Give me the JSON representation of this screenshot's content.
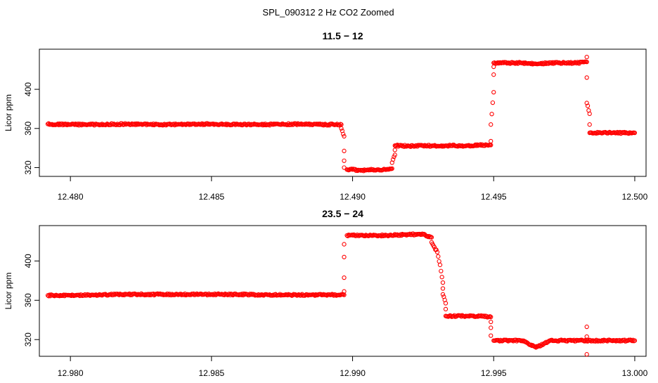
{
  "figure": {
    "title": "SPL_090312  2 Hz CO2 Zoomed"
  },
  "chart_data": [
    {
      "type": "scatter",
      "title": "11.5 − 12",
      "xlabel": "",
      "ylabel": "Licor ppm",
      "xlim": [
        12.4789,
        12.5004
      ],
      "ylim": [
        311,
        441
      ],
      "xticks": [
        12.48,
        12.485,
        12.49,
        12.495,
        12.5
      ],
      "xtick_labels": [
        "12.480",
        "12.485",
        "12.490",
        "12.495",
        "12.500"
      ],
      "yticks": [
        320,
        360,
        400
      ],
      "ytick_labels": [
        "320",
        "360",
        "400"
      ],
      "grid": false,
      "color": "#ff0000",
      "series": [
        {
          "x": [
            12.4792,
            12.48,
            12.481,
            12.482,
            12.483,
            12.484,
            12.485,
            12.486,
            12.487,
            12.488,
            12.489,
            12.4896
          ],
          "y": [
            364.5,
            364,
            364,
            364.5,
            364,
            364,
            364.5,
            364,
            364,
            364.5,
            364,
            364
          ]
        },
        {
          "x": [
            12.4896,
            12.4897,
            12.4897,
            12.4897,
            12.4897
          ],
          "y": [
            360,
            352,
            337,
            327,
            320
          ]
        },
        {
          "x": [
            12.4898,
            12.49,
            12.4903,
            12.4906,
            12.4909,
            12.4912,
            12.4914
          ],
          "y": [
            318,
            318,
            317,
            318,
            318,
            318,
            319
          ]
        },
        {
          "x": [
            12.4914,
            12.4915,
            12.4915
          ],
          "y": [
            325,
            333,
            338
          ]
        },
        {
          "x": [
            12.4915,
            12.492,
            12.4925,
            12.493,
            12.4935,
            12.494,
            12.4945,
            12.4949
          ],
          "y": [
            342.5,
            342,
            342.5,
            342,
            342.5,
            342,
            343,
            343
          ]
        },
        {
          "x": [
            12.4949,
            12.4949,
            12.495,
            12.495,
            12.495
          ],
          "y": [
            347,
            364,
            397,
            415,
            423
          ]
        },
        {
          "x": [
            12.495,
            12.4955,
            12.496,
            12.4965,
            12.497,
            12.4975,
            12.498,
            12.4983
          ],
          "y": [
            427,
            427,
            427,
            426,
            427,
            427,
            427,
            428
          ]
        },
        {
          "x": [
            12.4983,
            12.4983,
            12.4983,
            12.4984,
            12.4984
          ],
          "y": [
            433,
            412,
            386,
            375,
            364
          ]
        },
        {
          "x": [
            12.4984,
            12.4988,
            12.4992,
            12.4996,
            12.5
          ],
          "y": [
            355.5,
            355.5,
            355.5,
            355.5,
            355.5
          ]
        }
      ]
    },
    {
      "type": "scatter",
      "title": "23.5 − 24",
      "xlabel": "",
      "ylabel": "Licor ppm",
      "xlim": [
        12.9789,
        13.0004
      ],
      "ylim": [
        303,
        436
      ],
      "xticks": [
        12.98,
        12.985,
        12.99,
        12.995,
        13.0
      ],
      "xtick_labels": [
        "12.980",
        "12.985",
        "12.990",
        "12.995",
        "13.000"
      ],
      "yticks": [
        320,
        360,
        400
      ],
      "ytick_labels": [
        "320",
        "360",
        "400"
      ],
      "grid": false,
      "color": "#ff0000",
      "series": [
        {
          "x": [
            12.9792,
            12.98,
            12.981,
            12.982,
            12.983,
            12.984,
            12.985,
            12.986,
            12.987,
            12.988,
            12.989,
            12.9897
          ],
          "y": [
            365,
            365,
            365.5,
            366,
            366,
            366,
            366,
            366,
            365.5,
            365.5,
            365.5,
            365.5
          ]
        },
        {
          "x": [
            12.9897,
            12.9897,
            12.9897,
            12.9897
          ],
          "y": [
            369,
            383,
            404,
            417
          ]
        },
        {
          "x": [
            12.9898,
            12.9905,
            12.9912,
            12.992,
            12.9925,
            12.9928
          ],
          "y": [
            426,
            426,
            426,
            427,
            427,
            424
          ]
        },
        {
          "x": [
            12.9928,
            12.9929,
            12.993,
            12.9931,
            12.9932,
            12.9932,
            12.9932,
            12.9933,
            12.9933
          ],
          "y": [
            419,
            414,
            409,
            396,
            378,
            372,
            366,
            357,
            351
          ]
        },
        {
          "x": [
            12.9933,
            12.9937,
            12.9941,
            12.9945,
            12.9949
          ],
          "y": [
            344,
            344,
            344,
            344,
            343
          ]
        },
        {
          "x": [
            12.9949,
            12.9949,
            12.9949
          ],
          "y": [
            338,
            332,
            324
          ]
        },
        {
          "x": [
            12.995,
            12.996,
            12.9965,
            12.997,
            12.998,
            12.999,
            13.0
          ],
          "y": [
            319,
            319,
            312,
            319,
            319,
            319,
            319
          ]
        },
        {
          "x": [
            12.9983,
            12.9983,
            12.9983
          ],
          "y": [
            333,
            323,
            305
          ]
        }
      ]
    }
  ]
}
